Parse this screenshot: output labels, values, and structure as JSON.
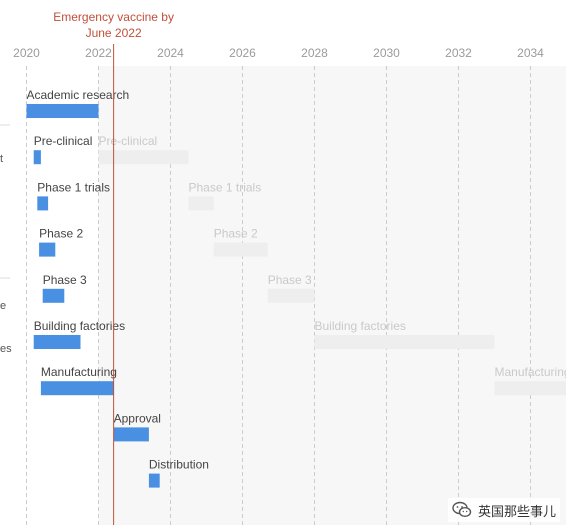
{
  "chart_data": {
    "type": "gantt",
    "x_ticks": [
      2020,
      2022,
      2024,
      2026,
      2028,
      2030,
      2032,
      2034
    ],
    "xlim": [
      2019.6,
      2035.1
    ],
    "shaded_from": 2022,
    "annotation": {
      "lines": [
        "Emergency vaccine by",
        "June 2022"
      ],
      "x": 2022.42
    },
    "colors": {
      "actual": "#4a90e2",
      "ghost": "#eeeeee",
      "annotation": "#c0503a",
      "grid": "#cccccc"
    },
    "rows": [
      {
        "label": "Academic research",
        "actual": [
          2020.0,
          2022.0
        ],
        "ghost": null,
        "ghost_label": null
      },
      {
        "label": "Pre-clinical",
        "actual": [
          2020.2,
          2020.4
        ],
        "ghost": [
          2022.0,
          2024.5
        ],
        "ghost_label": "Pre-clinical"
      },
      {
        "label": "Phase 1 trials",
        "actual": [
          2020.3,
          2020.6
        ],
        "ghost": [
          2024.5,
          2025.2
        ],
        "ghost_label": "Phase 1 trials"
      },
      {
        "label": "Phase 2",
        "actual": [
          2020.35,
          2020.8
        ],
        "ghost": [
          2025.2,
          2026.7
        ],
        "ghost_label": "Phase 2"
      },
      {
        "label": "Phase 3",
        "actual": [
          2020.45,
          2021.05
        ],
        "ghost": [
          2026.7,
          2028.0
        ],
        "ghost_label": "Phase 3"
      },
      {
        "label": "Building factories",
        "actual": [
          2020.2,
          2021.5
        ],
        "ghost": [
          2028.0,
          2033.0
        ],
        "ghost_label": "Building factories"
      },
      {
        "label": "Manufacturing",
        "actual": [
          2020.4,
          2022.42
        ],
        "ghost": [
          2033.0,
          2035.1
        ],
        "ghost_label": "Manufacturing"
      },
      {
        "label": "Approval",
        "actual": [
          2022.42,
          2023.4
        ],
        "ghost": null,
        "ghost_label": null
      },
      {
        "label": "Distribution",
        "actual": [
          2023.4,
          2023.7
        ],
        "ghost": null,
        "ghost_label": null
      }
    ]
  },
  "left_labels": [
    "t",
    "e",
    "es"
  ],
  "watermark": {
    "text": "英国那些事儿",
    "icon": "wechat-icon"
  }
}
